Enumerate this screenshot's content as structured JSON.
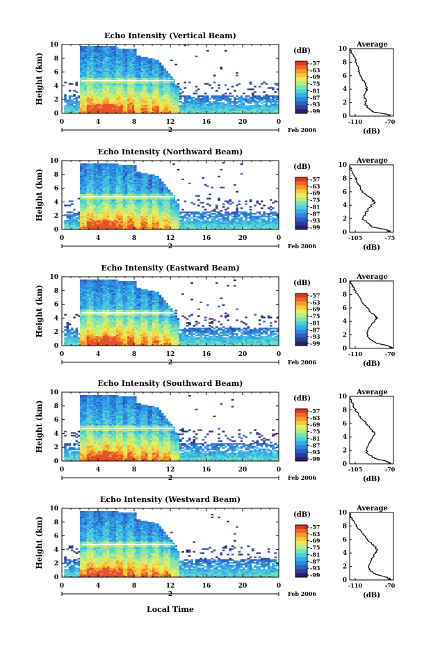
{
  "figure": {
    "xlabel": "Local Time",
    "date_label": "Feb 2006",
    "day_label": "2",
    "avg_unit_label": "(dB)"
  },
  "chart_data": [
    {
      "type": "heatmap",
      "title": "Echo Intensity (Vertical Beam)",
      "ylabel": "Height (km)",
      "x_ticks": [
        "0",
        "4",
        "8",
        "12",
        "16",
        "20",
        "0"
      ],
      "y_ticks": [
        "0",
        "2",
        "4",
        "6",
        "8",
        "10"
      ],
      "colorbar_label": "(dB)",
      "colorbar_ticks": [
        "-57",
        "-63",
        "-69",
        "-75",
        "-81",
        "-87",
        "-93",
        "-99"
      ],
      "avg_title": "Average",
      "avg_xticks": [
        "-110",
        "-70"
      ],
      "avg_yticks": [
        "0",
        "2",
        "4",
        "6",
        "8",
        "10"
      ],
      "avg_profile": [
        [
          -73,
          0
        ],
        [
          -76,
          0.3
        ],
        [
          -88,
          0.6
        ],
        [
          -93,
          1.2
        ],
        [
          -96,
          1.8
        ],
        [
          -95,
          2.4
        ],
        [
          -97,
          3
        ],
        [
          -94,
          3.8
        ],
        [
          -95,
          4.4
        ],
        [
          -96,
          5
        ],
        [
          -99,
          5.6
        ],
        [
          -101,
          6.2
        ],
        [
          -102,
          7
        ],
        [
          -104,
          7.8
        ],
        [
          -105,
          8.6
        ],
        [
          -108,
          9.3
        ],
        [
          -110,
          10
        ]
      ]
    },
    {
      "type": "heatmap",
      "title": "Echo Intensity (Northward Beam)",
      "ylabel": "Height (km)",
      "x_ticks": [
        "0",
        "4",
        "8",
        "12",
        "16",
        "20",
        "0"
      ],
      "y_ticks": [
        "0",
        "2",
        "4",
        "6",
        "8",
        "10"
      ],
      "colorbar_label": "(dB)",
      "colorbar_ticks": [
        "-57",
        "-63",
        "-69",
        "-75",
        "-81",
        "-87",
        "-93",
        "-99"
      ],
      "avg_title": "Average",
      "avg_xticks": [
        "-105",
        "-75"
      ],
      "avg_yticks": [
        "0",
        "2",
        "4",
        "6",
        "8",
        "10"
      ],
      "avg_profile": [
        [
          -77,
          0
        ],
        [
          -80,
          0.4
        ],
        [
          -90,
          0.8
        ],
        [
          -93,
          1.4
        ],
        [
          -96,
          2
        ],
        [
          -94,
          2.8
        ],
        [
          -92,
          3.6
        ],
        [
          -88,
          4.4
        ],
        [
          -89,
          4.8
        ],
        [
          -93,
          5.4
        ],
        [
          -96,
          6
        ],
        [
          -98,
          6.8
        ],
        [
          -100,
          7.6
        ],
        [
          -102,
          8.4
        ],
        [
          -104,
          9.2
        ],
        [
          -105,
          10
        ]
      ]
    },
    {
      "type": "heatmap",
      "title": "Echo Intensity (Eastward Beam)",
      "ylabel": "Height (km)",
      "x_ticks": [
        "0",
        "4",
        "8",
        "12",
        "16",
        "20",
        "0"
      ],
      "y_ticks": [
        "0",
        "2",
        "4",
        "6",
        "8",
        "10"
      ],
      "colorbar_label": "(dB)",
      "colorbar_ticks": [
        "-57",
        "-63",
        "-69",
        "-75",
        "-81",
        "-87",
        "-93",
        "-99"
      ],
      "avg_title": "Average",
      "avg_xticks": [
        "-110",
        "-70"
      ],
      "avg_yticks": [
        "0",
        "2",
        "4",
        "6",
        "8",
        "10"
      ],
      "avg_profile": [
        [
          -70,
          0
        ],
        [
          -75,
          0.4
        ],
        [
          -86,
          0.8
        ],
        [
          -92,
          1.4
        ],
        [
          -94,
          2
        ],
        [
          -93,
          2.8
        ],
        [
          -90,
          3.6
        ],
        [
          -85,
          4.4
        ],
        [
          -86,
          4.8
        ],
        [
          -91,
          5.4
        ],
        [
          -95,
          6.2
        ],
        [
          -99,
          7
        ],
        [
          -102,
          7.8
        ],
        [
          -105,
          8.6
        ],
        [
          -108,
          9.4
        ],
        [
          -110,
          10
        ]
      ]
    },
    {
      "type": "heatmap",
      "title": "Echo Intensity (Southward Beam)",
      "ylabel": "Height (km)",
      "x_ticks": [
        "0",
        "4",
        "8",
        "12",
        "16",
        "20",
        "0"
      ],
      "y_ticks": [
        "0",
        "2",
        "4",
        "6",
        "8",
        "10"
      ],
      "colorbar_label": "(dB)",
      "colorbar_ticks": [
        "-57",
        "-63",
        "-69",
        "-75",
        "-81",
        "-87",
        "-93",
        "-99"
      ],
      "avg_title": "Average",
      "avg_xticks": [
        "-105",
        "-70"
      ],
      "avg_yticks": [
        "0",
        "2",
        "4",
        "6",
        "8",
        "10"
      ],
      "avg_profile": [
        [
          -72,
          0
        ],
        [
          -76,
          0.4
        ],
        [
          -85,
          0.8
        ],
        [
          -90,
          1.4
        ],
        [
          -92,
          2
        ],
        [
          -90,
          2.8
        ],
        [
          -88,
          3.6
        ],
        [
          -85,
          4.4
        ],
        [
          -87,
          5
        ],
        [
          -91,
          5.8
        ],
        [
          -95,
          6.6
        ],
        [
          -98,
          7.4
        ],
        [
          -101,
          8.2
        ],
        [
          -103,
          9
        ],
        [
          -105,
          10
        ]
      ]
    },
    {
      "type": "heatmap",
      "title": "Echo Intensity (Westward Beam)",
      "ylabel": "Height (km)",
      "x_ticks": [
        "0",
        "4",
        "8",
        "12",
        "16",
        "20",
        "0"
      ],
      "y_ticks": [
        "0",
        "2",
        "4",
        "6",
        "8",
        "10"
      ],
      "colorbar_label": "(dB)",
      "colorbar_ticks": [
        "-57",
        "-63",
        "-69",
        "-75",
        "-81",
        "-87",
        "-93",
        "-99"
      ],
      "avg_title": "Average",
      "avg_xticks": [
        "-110",
        "-70"
      ],
      "avg_yticks": [
        "0",
        "2",
        "4",
        "6",
        "8",
        "10"
      ],
      "avg_profile": [
        [
          -72,
          0
        ],
        [
          -76,
          0.4
        ],
        [
          -86,
          0.8
        ],
        [
          -91,
          1.4
        ],
        [
          -93,
          2
        ],
        [
          -91,
          2.8
        ],
        [
          -88,
          3.6
        ],
        [
          -85,
          4.4
        ],
        [
          -86,
          4.8
        ],
        [
          -90,
          5.4
        ],
        [
          -95,
          6.2
        ],
        [
          -99,
          7
        ],
        [
          -103,
          7.8
        ],
        [
          -106,
          8.6
        ],
        [
          -109,
          9.4
        ],
        [
          -110,
          10
        ]
      ]
    }
  ]
}
